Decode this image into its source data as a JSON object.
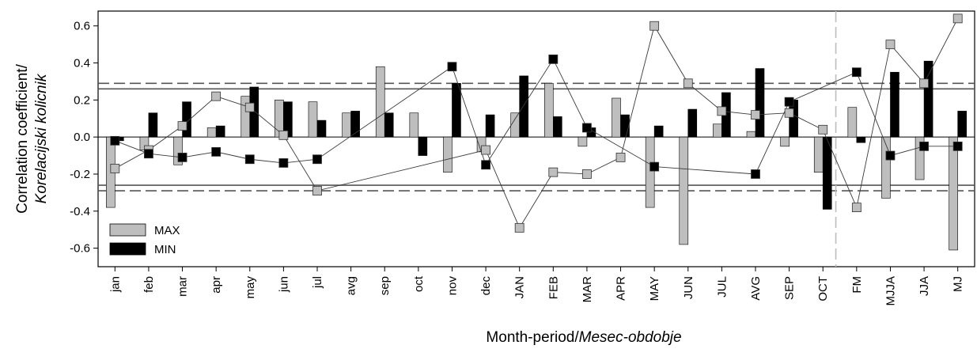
{
  "chart_data": {
    "type": "bar",
    "xlabel": {
      "plain": "Month-period/",
      "italic": "Mesec-obdobje"
    },
    "ylabel": {
      "plain": "Correlation coefficient/",
      "italic": "Korelacijski kolicnik"
    },
    "ylim": [
      -0.7,
      0.68
    ],
    "yticks": [
      "0.6",
      "0.4",
      "0.2",
      "0.0",
      "-0.2",
      "-0.4",
      "-0.6"
    ],
    "ytick_values": [
      0.6,
      0.4,
      0.2,
      0.0,
      -0.2,
      -0.4,
      -0.6
    ],
    "categories": [
      "jan",
      "feb",
      "mar",
      "apr",
      "may",
      "jun",
      "jul",
      "avg",
      "sep",
      "oct",
      "nov",
      "dec",
      "JAN",
      "FEB",
      "MAR",
      "APR",
      "MAY",
      "JUN",
      "JUL",
      "AVG",
      "SEP",
      "OCT",
      "FM",
      "MJJA",
      "JJA",
      "MJ"
    ],
    "series": [
      {
        "name": "MAX",
        "kind": "bar",
        "color": "#bebebe",
        "values": [
          -0.38,
          -0.07,
          -0.15,
          0.05,
          0.22,
          0.2,
          0.19,
          0.13,
          0.38,
          0.13,
          -0.19,
          -0.08,
          0.13,
          0.29,
          -0.05,
          0.21,
          -0.38,
          -0.58,
          0.07,
          0.03,
          -0.05,
          -0.19,
          0.16,
          -0.33,
          -0.23,
          -0.61
        ]
      },
      {
        "name": "MIN",
        "kind": "bar",
        "color": "#000000",
        "values": [
          -0.02,
          0.13,
          0.19,
          0.06,
          0.27,
          0.19,
          0.09,
          0.14,
          0.13,
          -0.1,
          0.29,
          0.12,
          0.33,
          0.11,
          0.05,
          0.12,
          0.06,
          0.15,
          0.24,
          0.37,
          0.2,
          -0.39,
          -0.03,
          0.35,
          0.41,
          0.14
        ]
      },
      {
        "name": "MAX",
        "kind": "line",
        "marker": "square",
        "color": "#bebebe",
        "values": [
          -0.17,
          -0.07,
          0.06,
          0.22,
          0.16,
          0.01,
          -0.29,
          null,
          null,
          null,
          null,
          -0.07,
          -0.49,
          -0.19,
          -0.2,
          -0.11,
          0.6,
          0.29,
          0.14,
          0.12,
          0.13,
          0.04,
          -0.38,
          0.5,
          0.29,
          0.64
        ]
      },
      {
        "name": "MIN",
        "kind": "line",
        "marker": "square",
        "color": "#000000",
        "values": [
          -0.02,
          -0.09,
          -0.11,
          -0.08,
          -0.12,
          -0.14,
          -0.12,
          null,
          null,
          null,
          0.38,
          -0.15,
          null,
          0.42,
          0.05,
          null,
          -0.16,
          null,
          null,
          -0.2,
          0.19,
          null,
          0.35,
          -0.1,
          -0.05,
          -0.05
        ]
      }
    ],
    "reference_lines": {
      "solid": [
        0.26,
        -0.26
      ],
      "dashed": [
        0.29,
        -0.29
      ]
    },
    "divider_after_category": "OCT",
    "legend": {
      "position": "bottom-left",
      "entries": [
        {
          "label": "MAX",
          "color": "#bebebe"
        },
        {
          "label": "MIN",
          "color": "#000000"
        }
      ]
    },
    "grid": false
  }
}
